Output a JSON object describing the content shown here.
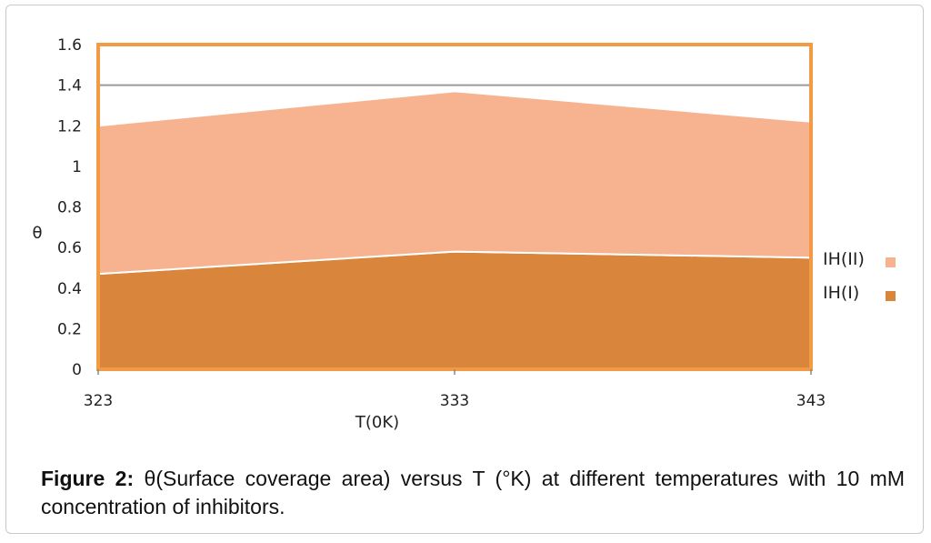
{
  "chart_data": {
    "type": "area",
    "stacked": true,
    "x": [
      323,
      333,
      343
    ],
    "series": [
      {
        "name": "IH(I)",
        "values": [
          0.47,
          0.58,
          0.55
        ],
        "color": "#d9853b"
      },
      {
        "name": "IH(II)",
        "values": [
          0.73,
          0.79,
          0.67
        ],
        "color": "#f7b28f"
      }
    ],
    "xlabel": "T(0K)",
    "ylabel": "θ",
    "ylim": [
      0,
      1.6
    ],
    "yticks": [
      "0",
      "0.2",
      "0.4",
      "0.6",
      "0.8",
      "1",
      "1.2",
      "1.4",
      "1.6"
    ],
    "xticks": [
      "323",
      "333",
      "343"
    ],
    "grid": true,
    "legend_position": "right",
    "frame_color": "#f39a45"
  },
  "caption": {
    "label": "Figure 2:",
    "text": " θ(Surface coverage area) versus T (°K) at different temperatures with 10 mM concentration of inhibitors."
  }
}
